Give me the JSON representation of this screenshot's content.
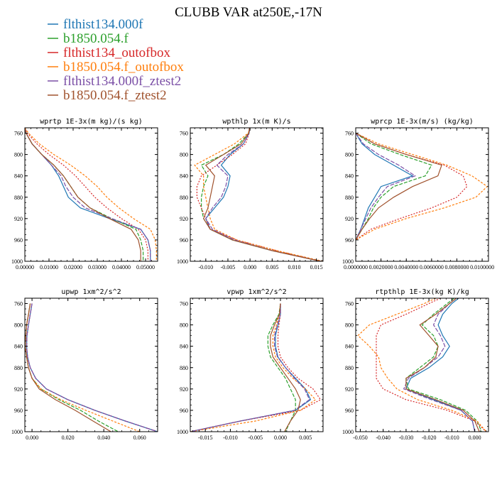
{
  "title": "CLUBB VAR at250E,-17N",
  "colors": {
    "flthist134.000f": "#1f77b4",
    "b1850.054.f": "#2ca02c",
    "flthist134_outofbox": "#d62728",
    "b1850.054.f_outofbox": "#ff7f0e",
    "flthist134.000f_ztest2": "#7b4fa6",
    "b1850.054.f_ztest2": "#a0522d"
  },
  "legend": [
    {
      "name": "flthist134.000f",
      "color": "#1f77b4"
    },
    {
      "name": "b1850.054.f",
      "color": "#2ca02c"
    },
    {
      "name": "flthist134_outofbox",
      "color": "#d62728"
    },
    {
      "name": "b1850.054.f_outofbox",
      "color": "#ff7f0e"
    },
    {
      "name": "flthist134.000f_ztest2",
      "color": "#7b4fa6"
    },
    {
      "name": "b1850.054.f_ztest2",
      "color": "#a0522d"
    }
  ],
  "chart_data": [
    {
      "type": "line",
      "title": "wprtp  1E-3x(m kg)/(s kg)",
      "xlim": [
        0.0,
        0.055
      ],
      "ylim": [
        1000,
        750
      ],
      "xticks": [
        0.0,
        0.01,
        0.02,
        0.03,
        0.04,
        0.05
      ],
      "xtick_labels": [
        "0.00000",
        "0.01000",
        "0.02000",
        "0.03000",
        "0.04000",
        "0.05000"
      ],
      "yticks": [
        760,
        800,
        840,
        880,
        920,
        960,
        1000
      ],
      "y": [
        750,
        760,
        780,
        800,
        820,
        840,
        860,
        880,
        900,
        920,
        940,
        960,
        980,
        1000
      ],
      "series": [
        {
          "name": "flthist134.000f",
          "values": [
            0.0,
            0.0005,
            0.003,
            0.007,
            0.011,
            0.014,
            0.016,
            0.018,
            0.023,
            0.035,
            0.048,
            0.051,
            0.052,
            0.052
          ]
        },
        {
          "name": "b1850.054.f",
          "values": [
            0.0,
            0.0005,
            0.003,
            0.007,
            0.012,
            0.016,
            0.019,
            0.022,
            0.027,
            0.036,
            0.046,
            0.048,
            0.049,
            0.049
          ]
        },
        {
          "name": "flthist134_outofbox",
          "values": [
            0.0,
            0.001,
            0.005,
            0.01,
            0.016,
            0.021,
            0.025,
            0.029,
            0.034,
            0.04,
            0.047,
            0.05,
            0.051,
            0.051
          ]
        },
        {
          "name": "b1850.054.f_outofbox",
          "values": [
            0.0,
            0.0015,
            0.006,
            0.012,
            0.019,
            0.025,
            0.03,
            0.034,
            0.039,
            0.045,
            0.052,
            0.054,
            0.0545,
            0.0545
          ]
        },
        {
          "name": "flthist134.000f_ztest2",
          "values": [
            0.0,
            0.0005,
            0.003,
            0.007,
            0.011,
            0.015,
            0.017,
            0.02,
            0.025,
            0.036,
            0.048,
            0.051,
            0.052,
            0.052
          ]
        },
        {
          "name": "b1850.054.f_ztest2",
          "values": [
            0.0,
            0.0005,
            0.003,
            0.007,
            0.012,
            0.016,
            0.019,
            0.022,
            0.027,
            0.035,
            0.044,
            0.047,
            0.048,
            0.048
          ]
        }
      ]
    },
    {
      "type": "line",
      "title": "wpthlp  1x(m K)/s",
      "xlim": [
        -0.0135,
        0.0165
      ],
      "ylim": [
        1000,
        750
      ],
      "xticks": [
        -0.01,
        -0.005,
        0.0,
        0.005,
        0.01,
        0.015
      ],
      "xtick_labels": [
        "-0.010",
        "-0.005",
        "0.000",
        "0.005",
        "0.010",
        "0.015"
      ],
      "yticks": [
        760,
        800,
        840,
        880,
        920,
        960,
        1000
      ],
      "y": [
        750,
        760,
        780,
        800,
        820,
        840,
        860,
        880,
        900,
        920,
        940,
        960,
        980,
        1000
      ],
      "series": [
        {
          "name": "flthist134.000f",
          "values": [
            -0.0001,
            -0.0002,
            -0.0015,
            -0.0045,
            -0.0065,
            -0.0045,
            -0.005,
            -0.006,
            -0.008,
            -0.01,
            -0.009,
            -0.004,
            0.005,
            0.016
          ]
        },
        {
          "name": "b1850.054.f",
          "values": [
            -0.0001,
            -0.0003,
            -0.0025,
            -0.006,
            -0.011,
            -0.0095,
            -0.0105,
            -0.011,
            -0.011,
            -0.0105,
            -0.009,
            -0.004,
            0.005,
            0.016
          ]
        },
        {
          "name": "flthist134_outofbox",
          "values": [
            -0.0001,
            -0.0002,
            -0.001,
            -0.004,
            -0.0075,
            -0.011,
            -0.012,
            -0.012,
            -0.011,
            -0.01,
            -0.009,
            -0.003,
            0.006,
            0.016
          ]
        },
        {
          "name": "b1850.054.f_outofbox",
          "values": [
            -0.0001,
            -0.0004,
            -0.0035,
            -0.008,
            -0.0125,
            -0.0105,
            -0.0105,
            -0.01,
            -0.0095,
            -0.009,
            -0.008,
            -0.003,
            0.006,
            0.0165
          ]
        },
        {
          "name": "flthist134.000f_ztest2",
          "values": [
            -0.0001,
            -0.0002,
            -0.0015,
            -0.005,
            -0.0075,
            -0.005,
            -0.0055,
            -0.0065,
            -0.0085,
            -0.01,
            -0.0085,
            -0.0035,
            0.005,
            0.016
          ]
        },
        {
          "name": "b1850.054.f_ztest2",
          "values": [
            -0.0001,
            -0.0003,
            -0.002,
            -0.006,
            -0.01,
            -0.008,
            -0.0085,
            -0.009,
            -0.0095,
            -0.0105,
            -0.009,
            -0.004,
            0.005,
            0.016
          ]
        }
      ]
    },
    {
      "type": "line",
      "title": "wprcp  1E-3x(m/s) (kg/kg)",
      "xlim": [
        0.0,
        0.0105
      ],
      "ylim": [
        1000,
        750
      ],
      "xticks": [
        0.0,
        0.002,
        0.004,
        0.006,
        0.008,
        0.01
      ],
      "xtick_labels": [
        "0.0000000",
        "0.0020000",
        "0.0040000",
        "0.0060000",
        "0.0080000",
        "0.0100000"
      ],
      "yticks": [
        760,
        800,
        840,
        880,
        920,
        960,
        1000
      ],
      "y": [
        760,
        780,
        800,
        820,
        840,
        860,
        880,
        900,
        920,
        940,
        960
      ],
      "series": [
        {
          "name": "flthist134.000f",
          "values": [
            0.0,
            0.0005,
            0.0015,
            0.003,
            0.0045,
            0.002,
            0.0015,
            0.001,
            0.0007,
            0.0004,
            0.0
          ]
        },
        {
          "name": "b1850.054.f",
          "values": [
            0.0,
            0.0012,
            0.0035,
            0.006,
            0.0055,
            0.003,
            0.002,
            0.0014,
            0.001,
            0.0005,
            0.0
          ]
        },
        {
          "name": "flthist134_outofbox",
          "values": [
            0.0,
            0.0015,
            0.004,
            0.007,
            0.0085,
            0.0088,
            0.008,
            0.006,
            0.0035,
            0.0012,
            0.0
          ]
        },
        {
          "name": "b1850.054.f_outofbox",
          "values": [
            0.0,
            0.0018,
            0.0045,
            0.0072,
            0.0092,
            0.0104,
            0.0095,
            0.007,
            0.004,
            0.0015,
            0.0
          ]
        },
        {
          "name": "flthist134.000f_ztest2",
          "values": [
            0.0,
            0.0006,
            0.0018,
            0.0034,
            0.0047,
            0.0025,
            0.0018,
            0.0012,
            0.0008,
            0.0004,
            0.0
          ]
        },
        {
          "name": "b1850.054.f_ztest2",
          "values": [
            0.0,
            0.0015,
            0.004,
            0.0068,
            0.0065,
            0.0045,
            0.003,
            0.0018,
            0.0011,
            0.0005,
            0.0
          ]
        }
      ]
    },
    {
      "type": "line",
      "title": "upwp  1xm^2/s^2",
      "xlim": [
        -0.004,
        0.07
      ],
      "ylim": [
        1000,
        750
      ],
      "xticks": [
        0.0,
        0.02,
        0.04,
        0.06
      ],
      "xtick_labels": [
        "0.000",
        "0.020",
        "0.040",
        "0.060"
      ],
      "yticks": [
        760,
        800,
        840,
        880,
        920,
        960,
        1000
      ],
      "y": [
        760,
        780,
        800,
        820,
        840,
        860,
        880,
        900,
        920,
        940,
        960,
        980,
        1000
      ],
      "series": [
        {
          "name": "flthist134.000f",
          "values": [
            0.0,
            -0.001,
            -0.002,
            -0.0028,
            -0.003,
            -0.0025,
            -0.001,
            0.002,
            0.008,
            0.02,
            0.035,
            0.052,
            0.07
          ]
        },
        {
          "name": "b1850.054.f",
          "values": [
            -0.001,
            -0.002,
            -0.003,
            -0.0035,
            -0.0038,
            -0.003,
            -0.002,
            0.0,
            0.005,
            0.015,
            0.027,
            0.037,
            0.048
          ]
        },
        {
          "name": "flthist134_outofbox",
          "values": [
            0.0,
            -0.001,
            -0.002,
            -0.0028,
            -0.003,
            -0.0025,
            -0.001,
            0.002,
            0.008,
            0.02,
            0.035,
            0.052,
            0.07
          ]
        },
        {
          "name": "b1850.054.f_outofbox",
          "values": [
            -0.001,
            -0.002,
            -0.003,
            -0.0035,
            -0.0038,
            -0.003,
            -0.002,
            0.0,
            0.005,
            0.016,
            0.03,
            0.045,
            0.06
          ]
        },
        {
          "name": "flthist134.000f_ztest2",
          "values": [
            0.0,
            -0.001,
            -0.002,
            -0.0028,
            -0.003,
            -0.0025,
            -0.001,
            0.002,
            0.008,
            0.02,
            0.035,
            0.052,
            0.07
          ]
        },
        {
          "name": "b1850.054.f_ztest2",
          "values": [
            -0.001,
            -0.002,
            -0.003,
            -0.0035,
            -0.0038,
            -0.003,
            -0.002,
            0.0,
            0.004,
            0.013,
            0.024,
            0.034,
            0.044
          ]
        }
      ]
    },
    {
      "type": "line",
      "title": "vpwp  1xm^2/s^2",
      "xlim": [
        -0.018,
        0.0085
      ],
      "ylim": [
        1000,
        750
      ],
      "xticks": [
        -0.015,
        -0.01,
        -0.005,
        0.0,
        0.005
      ],
      "xtick_labels": [
        "-0.015",
        "-0.010",
        "-0.005",
        "0.000",
        "0.005"
      ],
      "yticks": [
        760,
        800,
        840,
        880,
        920,
        960,
        1000
      ],
      "y": [
        760,
        780,
        800,
        820,
        840,
        860,
        880,
        900,
        920,
        940,
        960,
        980,
        1000
      ],
      "series": [
        {
          "name": "flthist134.000f",
          "values": [
            0.0,
            0.0,
            -0.0005,
            -0.001,
            -0.001,
            -0.0005,
            0.001,
            0.003,
            0.005,
            0.006,
            0.003,
            -0.008,
            -0.018
          ]
        },
        {
          "name": "b1850.054.f",
          "values": [
            0.0,
            -0.0003,
            -0.0015,
            -0.0025,
            -0.0025,
            -0.002,
            -0.0005,
            0.001,
            0.002,
            0.003,
            0.003,
            0.002,
            0.001
          ]
        },
        {
          "name": "flthist134_outofbox",
          "values": [
            0.0,
            0.0,
            -0.0003,
            -0.0005,
            -0.0005,
            0.0,
            0.0015,
            0.0035,
            0.0065,
            0.008,
            0.004,
            -0.008,
            -0.018
          ]
        },
        {
          "name": "b1850.054.f_outofbox",
          "values": [
            0.0,
            -0.0002,
            -0.0008,
            -0.0015,
            -0.0015,
            -0.001,
            0.0005,
            0.0025,
            0.005,
            0.007,
            0.004,
            -0.005,
            -0.018
          ]
        },
        {
          "name": "flthist134.000f_ztest2",
          "values": [
            0.0,
            0.0,
            -0.0006,
            -0.0012,
            -0.0012,
            -0.0006,
            0.001,
            0.0028,
            0.0048,
            0.0058,
            0.0028,
            -0.008,
            -0.018
          ]
        },
        {
          "name": "b1850.054.f_ztest2",
          "values": [
            0.0,
            -0.0002,
            -0.0012,
            -0.002,
            -0.002,
            -0.0015,
            0.0,
            0.0015,
            0.003,
            0.004,
            0.0035,
            0.002,
            0.0008
          ]
        }
      ]
    },
    {
      "type": "line",
      "title": "rtpthlp  1E-3x(kg K)/kg",
      "xlim": [
        -0.052,
        0.006
      ],
      "ylim": [
        1000,
        750
      ],
      "xticks": [
        -0.05,
        -0.04,
        -0.03,
        -0.02,
        -0.01,
        0.0
      ],
      "xtick_labels": [
        "-0.050",
        "-0.040",
        "-0.030",
        "-0.020",
        "-0.010",
        "0.000"
      ],
      "yticks": [
        760,
        800,
        840,
        880,
        920,
        960,
        1000
      ],
      "y": [
        750,
        760,
        780,
        800,
        820,
        840,
        860,
        880,
        900,
        920,
        940,
        960,
        980,
        1000
      ],
      "series": [
        {
          "name": "flthist134.000f",
          "values": [
            -0.007,
            -0.01,
            -0.014,
            -0.016,
            -0.014,
            -0.011,
            -0.014,
            -0.02,
            -0.028,
            -0.03,
            -0.018,
            -0.006,
            -0.001,
            0.0
          ]
        },
        {
          "name": "b1850.054.f",
          "values": [
            -0.009,
            -0.012,
            -0.018,
            -0.023,
            -0.018,
            -0.016,
            -0.018,
            -0.024,
            -0.03,
            -0.029,
            -0.015,
            -0.004,
            0.001,
            0.003
          ]
        },
        {
          "name": "flthist134_outofbox",
          "values": [
            -0.015,
            -0.02,
            -0.03,
            -0.041,
            -0.043,
            -0.043,
            -0.043,
            -0.043,
            -0.043,
            -0.04,
            -0.03,
            -0.012,
            0.0,
            0.005
          ]
        },
        {
          "name": "b1850.054.f_outofbox",
          "values": [
            -0.017,
            -0.022,
            -0.034,
            -0.046,
            -0.051,
            -0.046,
            -0.042,
            -0.041,
            -0.038,
            -0.034,
            -0.025,
            -0.01,
            0.001,
            0.005
          ]
        },
        {
          "name": "flthist134.000f_ztest2",
          "values": [
            -0.008,
            -0.011,
            -0.016,
            -0.018,
            -0.015,
            -0.013,
            -0.016,
            -0.022,
            -0.029,
            -0.031,
            -0.019,
            -0.006,
            -0.001,
            0.0
          ]
        },
        {
          "name": "b1850.054.f_ztest2",
          "values": [
            -0.008,
            -0.011,
            -0.017,
            -0.024,
            -0.02,
            -0.016,
            -0.017,
            -0.022,
            -0.03,
            -0.03,
            -0.017,
            -0.005,
            0.0,
            0.002
          ]
        }
      ]
    }
  ]
}
